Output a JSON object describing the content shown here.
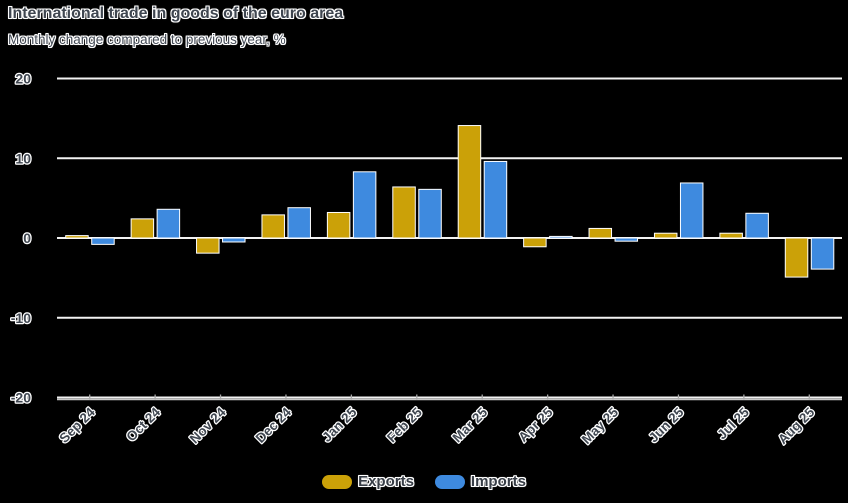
{
  "chart_data": {
    "type": "bar",
    "title": "International trade in goods of the euro area",
    "subtitle": "Monthly change compared to previous year, %",
    "categories": [
      "Sep 24",
      "Oct 24",
      "Nov 24",
      "Dec 24",
      "Jan 25",
      "Feb 25",
      "Mar 25",
      "Apr 25",
      "May 25",
      "Jun 25",
      "Jul 25",
      "Aug 25"
    ],
    "series": [
      {
        "name": "Exports",
        "color": "#CBA108",
        "values": [
          0.3,
          2.4,
          -1.9,
          2.9,
          3.2,
          6.4,
          14.1,
          -1.1,
          1.2,
          0.6,
          0.6,
          -4.9
        ]
      },
      {
        "name": "Imports",
        "color": "#3E8ADF",
        "values": [
          -0.8,
          3.6,
          -0.5,
          3.8,
          8.3,
          6.1,
          9.6,
          0.2,
          -0.4,
          6.9,
          3.1,
          -3.9
        ]
      }
    ],
    "xlabel": "",
    "ylabel": "",
    "ylim": [
      -20,
      20
    ],
    "yticks": [
      20,
      10,
      0,
      -10,
      -20
    ],
    "grid": true,
    "legend_position": "bottom",
    "colors": {
      "gridline": "#f2f2f2",
      "axis_line": "#c9c9c9",
      "tick_mark": "#a9a9a9",
      "bar_border": "#ffffff",
      "text": "#3f4650"
    }
  }
}
